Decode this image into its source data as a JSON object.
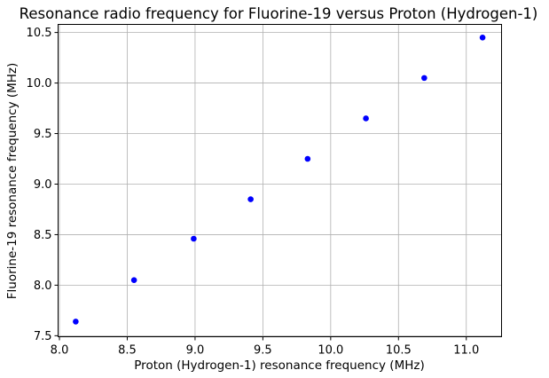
{
  "chart_data": {
    "type": "scatter",
    "title": "Resonance radio frequency for Fluorine-19 versus Proton (Hydrogen-1)",
    "xlabel": "Proton (Hydrogen-1) resonance frequency (MHz)",
    "ylabel": "Fluorine-19 resonance frequency (MHz)",
    "xlim": [
      7.99,
      11.26
    ],
    "ylim": [
      7.49,
      10.58
    ],
    "xticks": [
      8.0,
      8.5,
      9.0,
      9.5,
      10.0,
      10.5,
      11.0
    ],
    "xtick_labels": [
      "8.0",
      "8.5",
      "9.0",
      "9.5",
      "10.0",
      "10.5",
      "11.0"
    ],
    "yticks": [
      7.5,
      8.0,
      8.5,
      9.0,
      9.5,
      10.0,
      10.5
    ],
    "ytick_labels": [
      "7.5",
      "8.0",
      "8.5",
      "9.0",
      "9.5",
      "10.0",
      "10.5"
    ],
    "grid": true,
    "marker_color": "#0000ff",
    "points": [
      {
        "x": 8.12,
        "y": 7.64
      },
      {
        "x": 8.55,
        "y": 8.05
      },
      {
        "x": 8.99,
        "y": 8.46
      },
      {
        "x": 9.41,
        "y": 8.85
      },
      {
        "x": 9.83,
        "y": 9.25
      },
      {
        "x": 10.26,
        "y": 9.65
      },
      {
        "x": 10.69,
        "y": 10.05
      },
      {
        "x": 11.12,
        "y": 10.45
      }
    ]
  }
}
